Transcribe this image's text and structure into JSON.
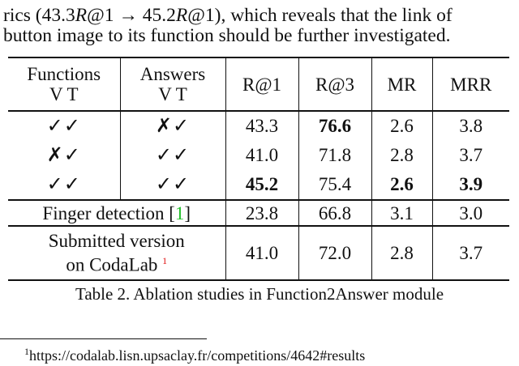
{
  "body_text": {
    "line1_prefix": "rics (43.3",
    "line1_r1": "R",
    "line1_mid": "@1 → 45.2",
    "line1_r2": "R",
    "line1_suffix": "@1), which reveals that the link of",
    "line2": "button image to its function should be further investigated."
  },
  "table": {
    "headers": {
      "functions": "Functions",
      "answers": "Answers",
      "vt": "V T",
      "r1": "R@1",
      "r3": "R@3",
      "mr": "MR",
      "mrr": "MRR"
    },
    "rows": [
      {
        "functions": "✓✓",
        "answers": "✗✓",
        "r1": "43.3",
        "r3": "76.6",
        "mr": "2.6",
        "mrr": "3.8",
        "bold": [
          "r3"
        ]
      },
      {
        "functions": "✗✓",
        "answers": "✓✓",
        "r1": "41.0",
        "r3": "71.8",
        "mr": "2.8",
        "mrr": "3.7",
        "bold": []
      },
      {
        "functions": "✓✓",
        "answers": "✓✓",
        "r1": "45.2",
        "r3": "75.4",
        "mr": "2.6",
        "mrr": "3.9",
        "bold": [
          "r1",
          "mr",
          "mrr"
        ]
      }
    ],
    "finger": {
      "label": "Finger detection [",
      "ref": "1",
      "close": "]",
      "r1": "23.8",
      "r3": "66.8",
      "mr": "3.1",
      "mrr": "3.0"
    },
    "submitted": {
      "label1": "Submitted version",
      "label2": "on CodaLab ",
      "fn": "1",
      "r1": "41.0",
      "r3": "72.0",
      "mr": "2.8",
      "mrr": "3.7"
    },
    "caption": "Table 2. Ablation studies in Function2Answer module"
  },
  "footnote": {
    "mark": "1",
    "text": "https://codalab.lisn.upsaclay.fr/competitions/4642#results"
  },
  "colors": {
    "citation": "#22c02a",
    "footnote_mark": "#e01010"
  }
}
